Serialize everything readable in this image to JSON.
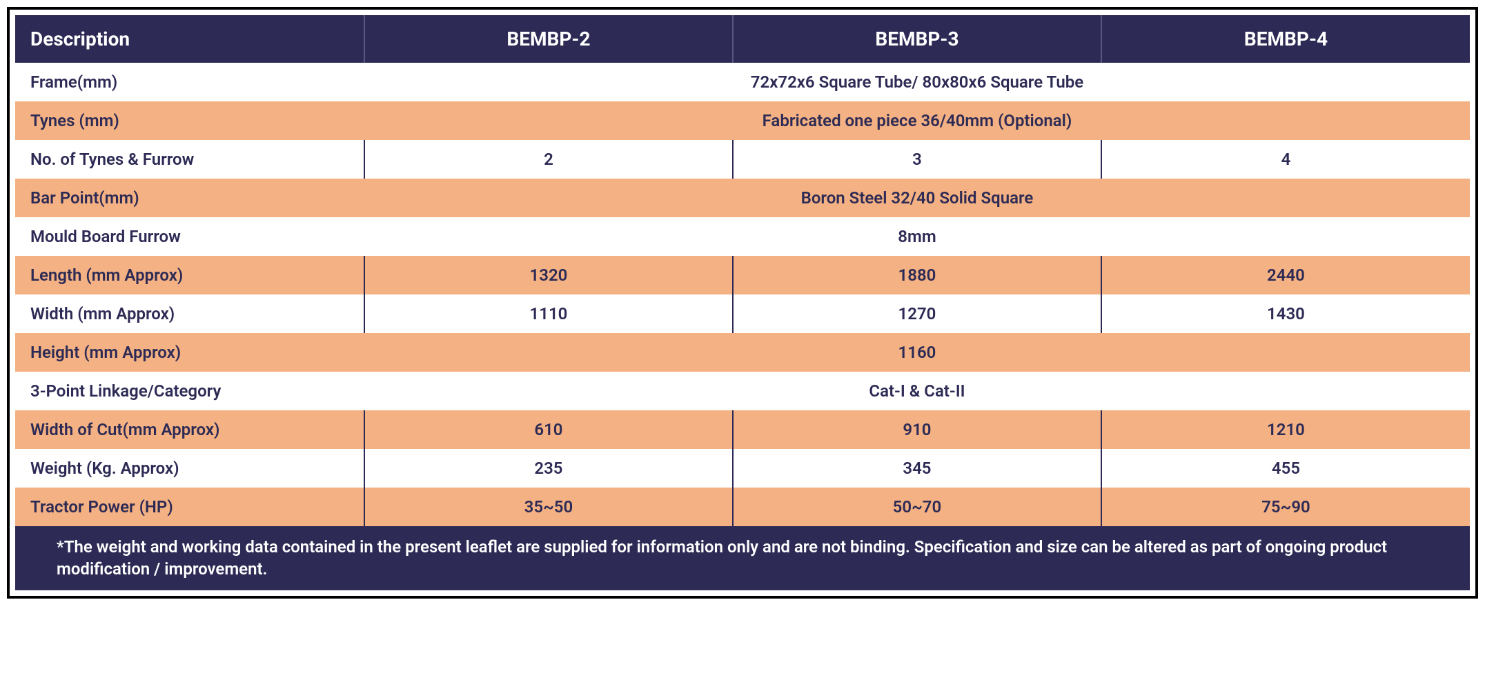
{
  "table": {
    "type": "table",
    "colors": {
      "header_bg": "#2d2b55",
      "header_text": "#ffffff",
      "row_alt_bg": "#f4b183",
      "row_bg": "#ffffff",
      "cell_text": "#2d2b55",
      "border": "#000000",
      "col_separator": "#2d2b55",
      "header_separator": "#5a5880"
    },
    "fontsize": {
      "header": 28,
      "body": 24,
      "footer": 24
    },
    "col_widths_pct": [
      24,
      25.33,
      25.33,
      25.33
    ],
    "columns": [
      "Description",
      "BEMBP-2",
      "BEMBP-3",
      "BEMBP-4"
    ],
    "rows": [
      {
        "label": "Frame(mm)",
        "cells": [
          "72x72x6 Square Tube/ 80x80x6 Square Tube"
        ],
        "span": 3,
        "bg": "white"
      },
      {
        "label": "Tynes (mm)",
        "cells": [
          "Fabricated one piece 36/40mm (Optional)"
        ],
        "span": 3,
        "bg": "orange"
      },
      {
        "label": "No. of Tynes & Furrow",
        "cells": [
          "2",
          "3",
          "4"
        ],
        "span": 1,
        "bg": "white"
      },
      {
        "label": "Bar Point(mm)",
        "cells": [
          "Boron Steel 32/40 Solid Square"
        ],
        "span": 3,
        "bg": "orange"
      },
      {
        "label": "Mould Board Furrow",
        "cells": [
          "8mm"
        ],
        "span": 3,
        "bg": "white"
      },
      {
        "label": "Length (mm Approx)",
        "cells": [
          "1320",
          "1880",
          "2440"
        ],
        "span": 1,
        "bg": "orange"
      },
      {
        "label": "Width (mm Approx)",
        "cells": [
          "1110",
          "1270",
          "1430"
        ],
        "span": 1,
        "bg": "white"
      },
      {
        "label": "Height (mm Approx)",
        "cells": [
          "1160"
        ],
        "span": 3,
        "bg": "orange"
      },
      {
        "label": "3-Point Linkage/Category",
        "cells": [
          "Cat-I & Cat-II"
        ],
        "span": 3,
        "bg": "white"
      },
      {
        "label": "Width of Cut(mm Approx)",
        "cells": [
          "610",
          "910",
          "1210"
        ],
        "span": 1,
        "bg": "orange"
      },
      {
        "label": "Weight (Kg. Approx)",
        "cells": [
          "235",
          "345",
          "455"
        ],
        "span": 1,
        "bg": "white"
      },
      {
        "label": "Tractor Power (HP)",
        "cells": [
          "35~50",
          "50~70",
          "75~90"
        ],
        "span": 1,
        "bg": "orange"
      }
    ],
    "footer": "*The weight and working data contained in the present leaflet are supplied for information only and are not binding. Specification and size can be altered as part of ongoing product modification / improvement."
  }
}
